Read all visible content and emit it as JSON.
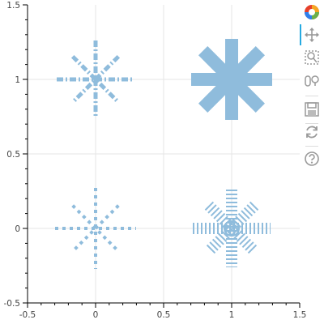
{
  "chart_data": {
    "type": "scatter",
    "title": "",
    "xlabel": "",
    "ylabel": "",
    "xlim": [
      -0.5,
      1.5
    ],
    "ylim": [
      -0.5,
      1.5
    ],
    "x_ticks": [
      "-0.5",
      "0",
      "0.5",
      "1",
      "1.5"
    ],
    "y_ticks": [
      "-0.5",
      "0",
      "0.5",
      "1",
      "1.5"
    ],
    "grid": true,
    "color": "#8fbcdc",
    "series": [
      {
        "x": 0,
        "y": 1,
        "marker": "asterisk",
        "fill": false,
        "dash": "dash-dot"
      },
      {
        "x": 1,
        "y": 1,
        "marker": "asterisk",
        "fill": true,
        "dash": "solid"
      },
      {
        "x": 0,
        "y": 0,
        "marker": "asterisk",
        "fill": false,
        "dash": "dotted"
      },
      {
        "x": 1,
        "y": 0,
        "marker": "asterisk",
        "fill": false,
        "dash": "hatched"
      }
    ]
  },
  "toolbar": {
    "items": [
      {
        "name": "bokeh-logo-icon",
        "interactable": false
      },
      {
        "name": "pan-tool-icon",
        "interactable": true,
        "active": true
      },
      {
        "name": "box-zoom-tool-icon",
        "interactable": true
      },
      {
        "name": "wheel-zoom-tool-icon",
        "interactable": true
      },
      {
        "name": "save-tool-icon",
        "interactable": true
      },
      {
        "name": "reset-tool-icon",
        "interactable": true
      },
      {
        "name": "help-tool-icon",
        "interactable": true
      }
    ]
  }
}
